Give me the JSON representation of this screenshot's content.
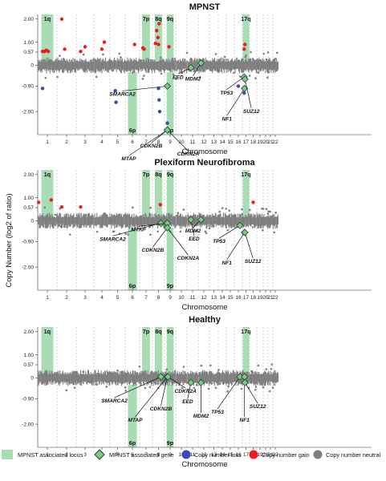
{
  "figure": {
    "y_axis_label": "Copy Number (log2 of ratio)",
    "x_axis_label": "Chromosome",
    "colors": {
      "locus_band": "#a8dcb4",
      "gene_marker_fill": "#7cc98a",
      "gene_marker_stroke": "#1f4a26",
      "loss": "#3a49b8",
      "gain": "#ee1c1c",
      "neutral": "#7f7f7f",
      "grid": "#bbbbbb"
    },
    "legend": [
      {
        "key": "locus",
        "label": "MPNST associated locus"
      },
      {
        "key": "gene",
        "label": "MPNST associated gene"
      },
      {
        "key": "loss",
        "label": "Copy number loss"
      },
      {
        "key": "gain",
        "label": "Copy number gain"
      },
      {
        "key": "neutral",
        "label": "Copy number neutral"
      }
    ]
  },
  "chart_data": [
    {
      "type": "scatter",
      "title": "MPNST",
      "xlabel": "Chromosome",
      "ylabel": "Copy Number (log2 of ratio)",
      "ylim": [
        -3.0,
        2.2
      ],
      "y_ticks": [
        {
          "v": 2.0,
          "label": "2.00"
        },
        {
          "v": 1.0,
          "label": "1.00"
        },
        {
          "v": 0.57,
          "label": "0.57"
        },
        {
          "v": 0.0,
          "label": "0"
        },
        {
          "v": -0.9,
          "label": "-0.90"
        },
        {
          "v": -2.0,
          "label": "-2.00"
        }
      ],
      "chromosomes": [
        "1",
        "2",
        "3",
        "4",
        "5",
        "6",
        "7",
        "8",
        "9",
        "10",
        "11",
        "12",
        "13",
        "14",
        "15",
        "16",
        "17",
        "18",
        "19",
        "20",
        "21",
        "22"
      ],
      "loci": [
        {
          "label": "1q",
          "chrom": 1,
          "pos": "top"
        },
        {
          "label": "6p",
          "chrom": 6,
          "pos": "bottom"
        },
        {
          "label": "7p",
          "chrom": 7,
          "pos": "top"
        },
        {
          "label": "8q",
          "chrom": 8,
          "pos": "top"
        },
        {
          "label": "9p",
          "chrom": 9,
          "pos": "bottom"
        },
        {
          "label": "9q",
          "chrom": 9,
          "pos": "top"
        },
        {
          "label": "17q",
          "chrom": 17,
          "pos": "top"
        }
      ],
      "genes": [
        {
          "name": "SMARCA2",
          "chrom": 9.0,
          "value": -0.9
        },
        {
          "name": "MTAP",
          "chrom": 9.0,
          "value": -2.8
        },
        {
          "name": "CDKN2B",
          "chrom": 9.0,
          "value": -2.8
        },
        {
          "name": "CDKN2A",
          "chrom": 9.0,
          "value": -2.8
        },
        {
          "name": "EED",
          "chrom": 11.2,
          "value": -0.1
        },
        {
          "name": "MDM2",
          "chrom": 12.0,
          "value": 0.1
        },
        {
          "name": "TP53",
          "chrom": 17.0,
          "value": -0.5
        },
        {
          "name": "NF1",
          "chrom": 17.1,
          "value": -1.0
        },
        {
          "name": "SUZ12",
          "chrom": 17.2,
          "value": -0.6
        }
      ],
      "gain_points": [
        [
          1.0,
          0.6
        ],
        [
          1.2,
          0.6
        ],
        [
          1.4,
          0.65
        ],
        [
          1.6,
          0.6
        ],
        [
          2.0,
          2.0
        ],
        [
          2.3,
          0.7
        ],
        [
          3.0,
          0.6
        ],
        [
          3.5,
          0.8
        ],
        [
          4.5,
          0.7
        ],
        [
          4.8,
          1.0
        ],
        [
          6.8,
          0.9
        ],
        [
          7.0,
          0.75
        ],
        [
          7.2,
          0.7
        ],
        [
          8.0,
          0.95
        ],
        [
          8.2,
          1.5
        ],
        [
          8.4,
          1.2
        ],
        [
          8.5,
          0.9
        ],
        [
          8.6,
          1.8
        ],
        [
          9.3,
          0.8
        ],
        [
          17.0,
          0.7
        ],
        [
          17.2,
          0.9
        ]
      ],
      "loss_points": [
        [
          1.0,
          -1.0
        ],
        [
          5.2,
          -1.1
        ],
        [
          5.3,
          -1.6
        ],
        [
          8.5,
          -1.0
        ],
        [
          8.6,
          -1.5
        ],
        [
          8.7,
          -2.0
        ],
        [
          9.0,
          -2.5
        ],
        [
          16.5,
          -0.9
        ],
        [
          17.0,
          -1.2
        ]
      ]
    },
    {
      "type": "scatter",
      "title": "Plexiform Neurofibroma",
      "xlabel": "Chromosome",
      "ylabel": "Copy Number (log2 of ratio)",
      "ylim": [
        -3.0,
        2.2
      ],
      "y_ticks": [
        {
          "v": 2.0,
          "label": "2.00"
        },
        {
          "v": 1.0,
          "label": "1.00"
        },
        {
          "v": 0.57,
          "label": "0.57"
        },
        {
          "v": 0.0,
          "label": "0"
        },
        {
          "v": -0.9,
          "label": "-0.90"
        },
        {
          "v": -2.0,
          "label": "-2.00"
        }
      ],
      "chromosomes": [
        "1",
        "2",
        "3",
        "4",
        "5",
        "6",
        "7",
        "8",
        "9",
        "10",
        "11",
        "12",
        "13",
        "14",
        "15",
        "16",
        "17",
        "18",
        "19",
        "20",
        "21",
        "22"
      ],
      "loci": [
        {
          "label": "1q",
          "chrom": 1,
          "pos": "top"
        },
        {
          "label": "6p",
          "chrom": 6,
          "pos": "bottom"
        },
        {
          "label": "7p",
          "chrom": 7,
          "pos": "top"
        },
        {
          "label": "8q",
          "chrom": 8,
          "pos": "top"
        },
        {
          "label": "9p",
          "chrom": 9,
          "pos": "bottom"
        },
        {
          "label": "9q",
          "chrom": 9,
          "pos": "top"
        },
        {
          "label": "17q",
          "chrom": 17,
          "pos": "top"
        }
      ],
      "genes": [
        {
          "name": "SMARCA2",
          "chrom": 8.9,
          "value": -0.1
        },
        {
          "name": "MTAP",
          "chrom": 9.0,
          "value": -0.1
        },
        {
          "name": "CDKN2B",
          "chrom": 9.0,
          "value": -0.3
        },
        {
          "name": "CDKN2A",
          "chrom": 9.0,
          "value": -0.3
        },
        {
          "name": "EED",
          "chrom": 11.2,
          "value": 0.05
        },
        {
          "name": "MDM2",
          "chrom": 12.0,
          "value": 0.05
        },
        {
          "name": "TP53",
          "chrom": 16.9,
          "value": -0.2
        },
        {
          "name": "NF1",
          "chrom": 17.1,
          "value": -0.5
        },
        {
          "name": "SUZ12",
          "chrom": 17.2,
          "value": -0.5
        }
      ],
      "gain_points": [
        [
          0.6,
          0.8
        ],
        [
          1.9,
          0.9
        ],
        [
          2.0,
          0.6
        ],
        [
          3.0,
          0.6
        ],
        [
          8.8,
          0.7
        ],
        [
          18.5,
          0.8
        ]
      ],
      "loss_points": []
    },
    {
      "type": "scatter",
      "title": "Healthy",
      "xlabel": "Chromosome",
      "ylabel": "Copy Number (log2 of ratio)",
      "ylim": [
        -3.0,
        2.2
      ],
      "y_ticks": [
        {
          "v": 2.0,
          "label": "2.00"
        },
        {
          "v": 1.0,
          "label": "1.00"
        },
        {
          "v": 0.57,
          "label": "0.57"
        },
        {
          "v": 0.0,
          "label": "0"
        },
        {
          "v": -0.9,
          "label": "-0.90"
        },
        {
          "v": -2.0,
          "label": "-2.00"
        }
      ],
      "chromosomes": [
        "1",
        "2",
        "3",
        "4",
        "5",
        "6",
        "7",
        "8",
        "9",
        "10",
        "11",
        "12",
        "13",
        "14",
        "15",
        "16",
        "17",
        "18",
        "19",
        "20",
        "21",
        "22"
      ],
      "loci": [
        {
          "label": "1q",
          "chrom": 1,
          "pos": "top"
        },
        {
          "label": "6p",
          "chrom": 6,
          "pos": "bottom"
        },
        {
          "label": "7p",
          "chrom": 7,
          "pos": "top"
        },
        {
          "label": "8q",
          "chrom": 8,
          "pos": "top"
        },
        {
          "label": "9p",
          "chrom": 9,
          "pos": "bottom"
        },
        {
          "label": "9q",
          "chrom": 9,
          "pos": "top"
        },
        {
          "label": "17q",
          "chrom": 17,
          "pos": "top"
        }
      ],
      "genes": [
        {
          "name": "SMARCA2",
          "chrom": 8.9,
          "value": 0.05
        },
        {
          "name": "MTAP",
          "chrom": 9.0,
          "value": 0.05
        },
        {
          "name": "CDKN2B",
          "chrom": 9.0,
          "value": 0.05
        },
        {
          "name": "CDKN2A",
          "chrom": 9.1,
          "value": 0.05
        },
        {
          "name": "EED",
          "chrom": 11.2,
          "value": -0.2
        },
        {
          "name": "MDM2",
          "chrom": 12.0,
          "value": -0.2
        },
        {
          "name": "TP53",
          "chrom": 16.9,
          "value": 0.05
        },
        {
          "name": "NF1",
          "chrom": 17.1,
          "value": 0.05
        },
        {
          "name": "SUZ12",
          "chrom": 17.2,
          "value": -0.2
        }
      ],
      "gain_points": [],
      "loss_points": []
    }
  ]
}
